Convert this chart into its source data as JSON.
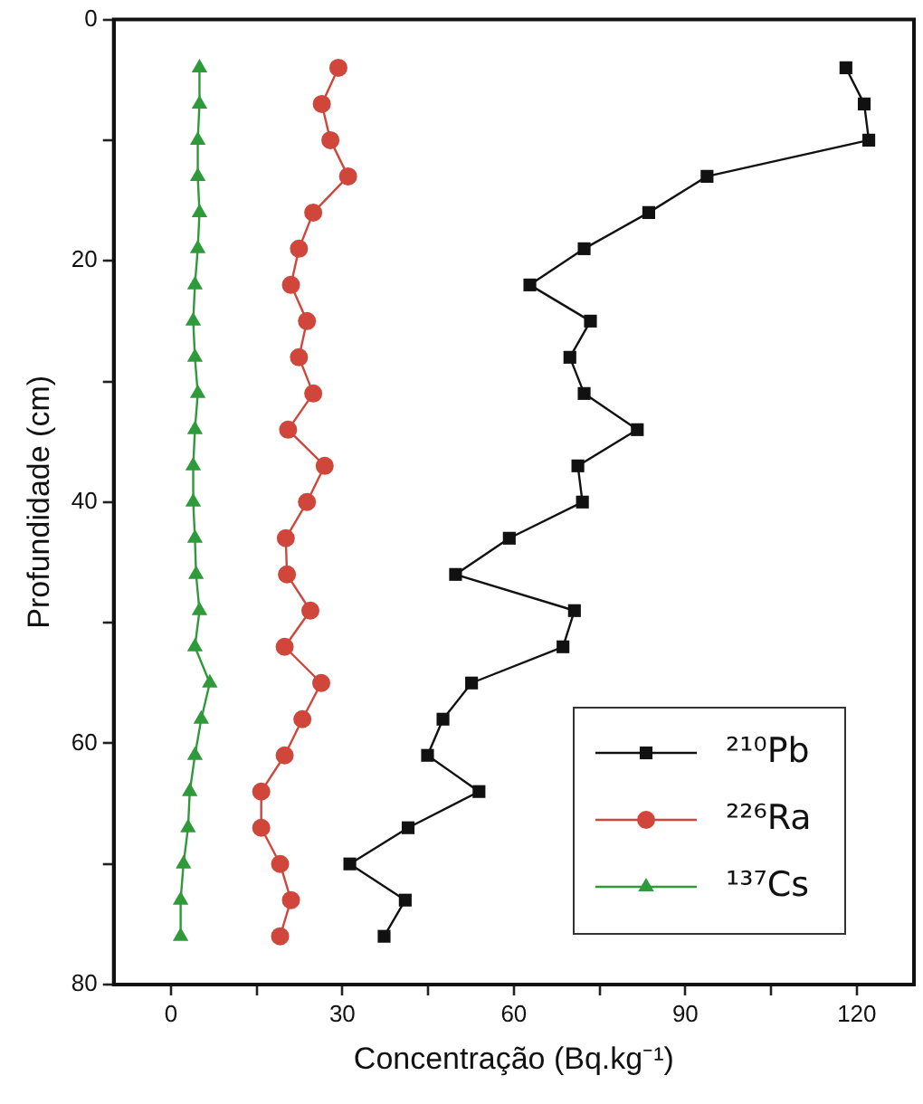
{
  "chart_data": {
    "type": "line",
    "xlabel": "Concentração (Bq.kg⁻¹)",
    "ylabel": "Profundidade (cm)",
    "xlim": [
      -10,
      130
    ],
    "xticks": [
      0,
      {
        "value": 15,
        "label": null
      },
      30,
      {
        "value": 45,
        "label": null
      },
      60,
      {
        "value": 75,
        "label": null
      },
      90,
      {
        "value": 105,
        "label": null
      },
      120
    ],
    "ylim": [
      80,
      0
    ],
    "yticks": [
      0,
      {
        "value": 10,
        "label": null
      },
      20,
      {
        "value": 30,
        "label": null
      },
      40,
      {
        "value": 50,
        "label": null
      },
      60,
      {
        "value": 70,
        "label": null
      },
      80
    ],
    "grid": false,
    "legend": "bottom right",
    "series": [
      {
        "name": "²¹⁰Pb",
        "color": "#111111",
        "marker": "square",
        "x": [
          118.1,
          121.3,
          122.1,
          93.8,
          83.6,
          72.3,
          62.8,
          73.4,
          69.8,
          72.3,
          81.6,
          71.2,
          72.0,
          59.2,
          49.8,
          70.6,
          68.6,
          52.6,
          47.6,
          44.9,
          53.9,
          41.5,
          31.3,
          41.0,
          37.3
        ],
        "values": [
          4,
          7,
          10,
          13,
          16,
          19,
          22,
          25,
          28,
          31,
          34,
          37,
          40,
          43,
          46,
          49,
          52,
          55,
          58,
          61,
          64,
          67,
          70,
          73,
          76
        ]
      },
      {
        "name": "²²⁶Ra",
        "color": "#d1463b",
        "marker": "circle",
        "x": [
          29.3,
          26.4,
          27.9,
          31.0,
          24.9,
          22.4,
          21.0,
          23.8,
          22.4,
          24.9,
          20.5,
          26.9,
          23.8,
          20.1,
          20.3,
          24.4,
          19.9,
          26.3,
          23.0,
          19.9,
          15.8,
          15.8,
          19.1,
          21.0,
          19.1
        ],
        "values": [
          4,
          7,
          10,
          13,
          16,
          19,
          22,
          25,
          28,
          31,
          34,
          37,
          40,
          43,
          46,
          49,
          52,
          55,
          58,
          61,
          64,
          67,
          70,
          73,
          76
        ]
      },
      {
        "name": "¹³⁷Cs",
        "color": "#2e9a3a",
        "marker": "triangle",
        "x": [
          5.0,
          5.0,
          4.7,
          4.7,
          5.0,
          4.7,
          4.2,
          3.9,
          4.2,
          4.7,
          4.2,
          3.9,
          3.9,
          4.2,
          4.4,
          5.0,
          4.2,
          6.8,
          5.3,
          4.2,
          3.3,
          3.0,
          2.2,
          1.7,
          1.7
        ],
        "values": [
          4,
          7,
          10,
          13,
          16,
          19,
          22,
          25,
          28,
          31,
          34,
          37,
          40,
          43,
          46,
          49,
          52,
          55,
          58,
          61,
          64,
          67,
          70,
          73,
          76
        ]
      }
    ]
  }
}
